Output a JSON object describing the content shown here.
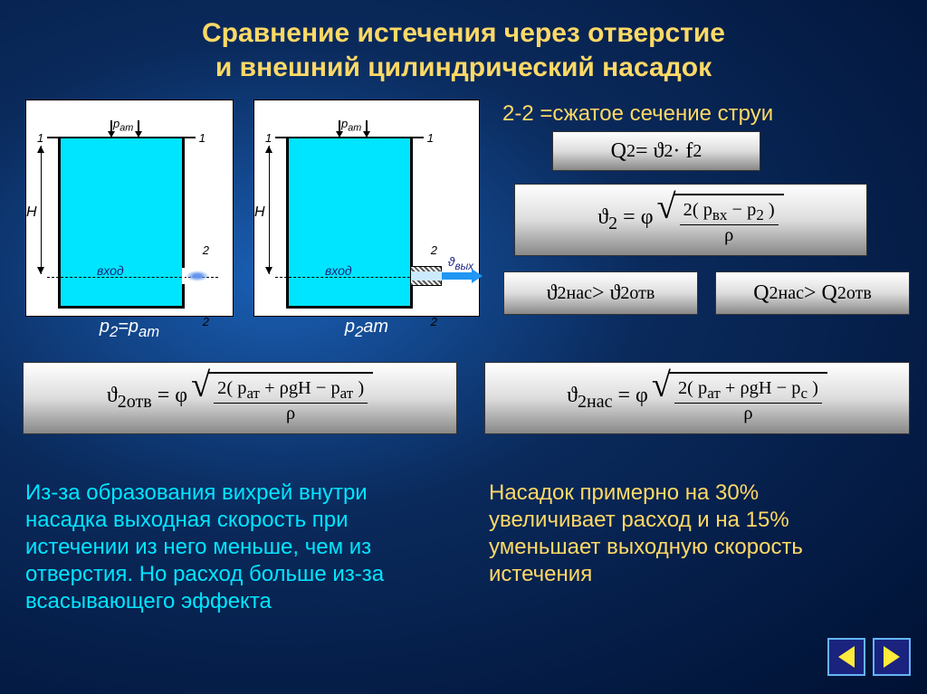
{
  "title_line1": "Сравнение истечения через отверстие",
  "title_line2": "и внешний цилиндрический насадок",
  "section_label": "2-2 =сжатое сечение струи",
  "diagrams": {
    "p_am": "р<sub>ат</sub>",
    "H": "H",
    "marker1": "1",
    "marker2": "2",
    "vhod": "вход",
    "v_vyh": "ϑ<sub>вых</sub>",
    "caption_left": "p<sub>2</sub>=p<sub>ат</sub>",
    "caption_right": "p<sub>2</sub><p<sub>ат</sub>"
  },
  "formulas": {
    "q2": "Q<sub>2</sub> = ϑ<sub>2</sub> · f<sub>2</sub>",
    "v2": {
      "lhs": "ϑ<sub>2</sub> = φ",
      "num": "2( p<sub>вх</sub> − p<sub>2</sub> )",
      "den": "ρ"
    },
    "cmp_v": "ϑ<sub>2нас</sub> > ϑ<sub>2отв</sub>",
    "cmp_q": "Q<sub>2нас</sub> > Q<sub>2отв</sub>",
    "v2_otv": {
      "lhs": "ϑ<sub>2отв</sub> = φ",
      "num": "2( p<sub>ат</sub> + ρgH − p<sub>ат</sub> )",
      "den": "ρ"
    },
    "v2_nas": {
      "lhs": "ϑ<sub>2нас</sub> = φ",
      "num": "2( p<sub>ат</sub> + ρgH − p<sub>c</sub> )",
      "den": "ρ"
    }
  },
  "text_left": "Из-за образования вихрей внутри насадка выходная скорость при истечении из него меньше, чем из отверстия.  Но расход больше из-за всасывающего эффекта",
  "text_right": "Насадок примерно на 30% увеличивает расход и на 15% уменьшает выходную скорость истечения",
  "colors": {
    "title": "#ffd966",
    "water": "#00e5ff",
    "right_text": "#ffd966",
    "left_text": "#00e5ff"
  }
}
